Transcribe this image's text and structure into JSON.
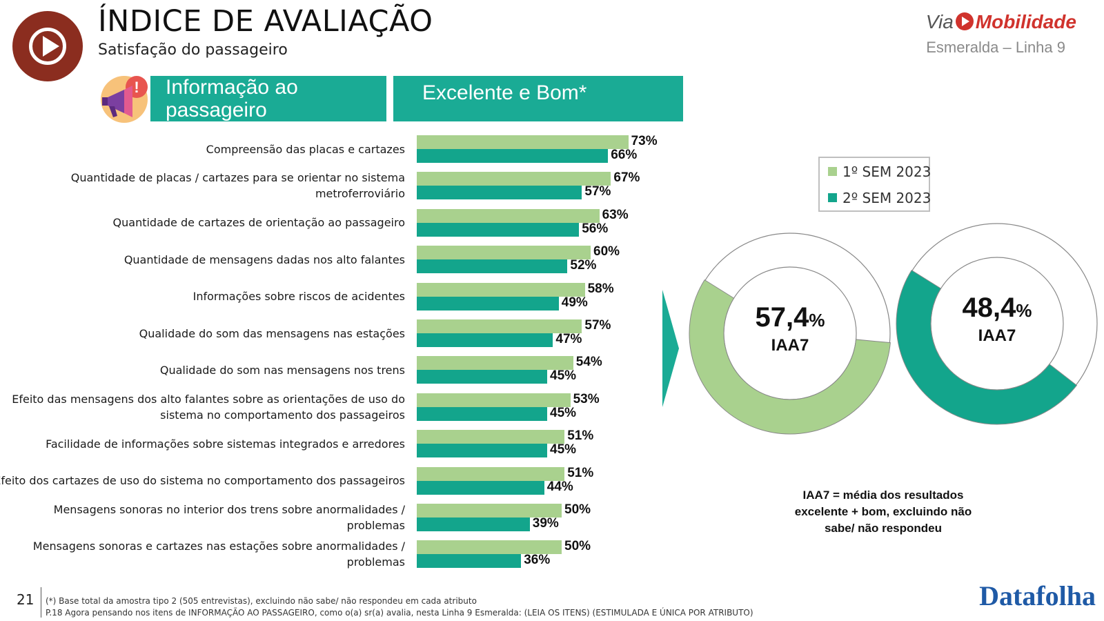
{
  "header": {
    "title": "ÍNDICE DE AVALIAÇÃO",
    "subtitle": "Satisfação do passageiro",
    "brand_via": "Via",
    "brand_mob": "Mobilidade",
    "line_name": "Esmeralda – Linha 9"
  },
  "section": {
    "topic_line1": "Informação ao",
    "topic_line2": "passageiro",
    "measure": "Excelente e Bom*"
  },
  "colors": {
    "sem1": "#a9d18e",
    "sem2": "#13a58c",
    "header_band": "#1aab95",
    "brand_red": "#d0332d",
    "logo_brown": "#8b2d1f"
  },
  "icons": {
    "logo": "play-circle-icon",
    "topic": "megaphone-icon",
    "brand": "play-dot-icon"
  },
  "legend": {
    "items": [
      "1º SEM 2023",
      "2º SEM 2023"
    ]
  },
  "chart_data": [
    {
      "type": "bar",
      "orientation": "horizontal",
      "categories": [
        "Compreensão das placas e cartazes",
        "Quantidade de placas / cartazes para se orientar no sistema metroferroviário",
        "Quantidade de cartazes de orientação ao passageiro",
        "Quantidade de mensagens dadas nos alto falantes",
        "Informações sobre riscos de acidentes",
        "Qualidade do som das mensagens nas estações",
        "Qualidade do som nas mensagens nos trens",
        "Efeito das mensagens dos alto falantes sobre as orientações de uso do sistema no comportamento dos passageiros",
        "Facilidade de informações sobre sistemas integrados e arredores",
        "Efeito dos cartazes de uso do sistema no comportamento dos passageiros",
        "Mensagens sonoras no interior dos trens sobre anormalidades / problemas",
        "Mensagens sonoras e cartazes nas estações sobre anormalidades / problemas"
      ],
      "category_lines": [
        [
          "Compreensão das placas e cartazes"
        ],
        [
          "Quantidade de placas / cartazes para se orientar no sistema",
          "metroferroviário"
        ],
        [
          "Quantidade de cartazes de orientação ao passageiro"
        ],
        [
          "Quantidade de mensagens dadas nos alto falantes"
        ],
        [
          "Informações sobre riscos de acidentes"
        ],
        [
          "Qualidade do som das mensagens nas estações"
        ],
        [
          "Qualidade do som nas mensagens nos trens"
        ],
        [
          "Efeito das mensagens dos alto falantes sobre as orientações de uso do",
          "sistema no comportamento dos passageiros"
        ],
        [
          "Facilidade de informações sobre sistemas integrados e arredores"
        ],
        [
          "Efeito dos cartazes de uso do sistema no comportamento dos passageiros"
        ],
        [
          "Mensagens sonoras no interior dos trens sobre anormalidades /",
          "problemas"
        ],
        [
          "Mensagens sonoras e cartazes nas estações sobre anormalidades /",
          "problemas"
        ]
      ],
      "series": [
        {
          "name": "1º SEM 2023",
          "values": [
            73,
            67,
            63,
            60,
            58,
            57,
            54,
            53,
            51,
            51,
            50,
            50
          ],
          "labels": [
            "73%",
            "67%",
            "63%",
            "60%",
            "58%",
            "57%",
            "54%",
            "53%",
            "51%",
            "51%",
            "50%",
            "50%"
          ]
        },
        {
          "name": "2º SEM 2023",
          "values": [
            66,
            57,
            56,
            52,
            49,
            47,
            45,
            45,
            45,
            44,
            39,
            36
          ],
          "labels": [
            "66%",
            "57%",
            "56%",
            "52%",
            "49%",
            "47%",
            "45%",
            "45%",
            "45%",
            "44%",
            "39%",
            "36%"
          ]
        }
      ],
      "unit": "%",
      "title": "Excelente e Bom*",
      "legend_position": "right"
    },
    {
      "type": "pie",
      "variant": "donut",
      "series_name": "1º SEM 2023",
      "value": 57.4,
      "value_text": "57,4",
      "unit_text": "%",
      "label": "IAA7"
    },
    {
      "type": "pie",
      "variant": "donut",
      "series_name": "2º SEM 2023",
      "value": 48.4,
      "value_text": "48,4",
      "unit_text": "%",
      "label": "IAA7"
    }
  ],
  "note": "IAA7 = média dos resultados excelente + bom, excluindo não sabe/ não respondeu",
  "footer": {
    "page_number": "21",
    "footnote1": "(*) Base total da amostra tipo 2 (505 entrevistas), excluindo não sabe/ não respondeu em cada atributo",
    "footnote2": "P.18 Agora pensando nos itens de INFORMAÇÃO AO PASSAGEIRO, como o(a) sr(a) avalia, nesta Linha 9 Esmeralda: (LEIA OS ITENS) (ESTIMULADA E ÚNICA POR ATRIBUTO)",
    "brand": "Datafolha"
  }
}
